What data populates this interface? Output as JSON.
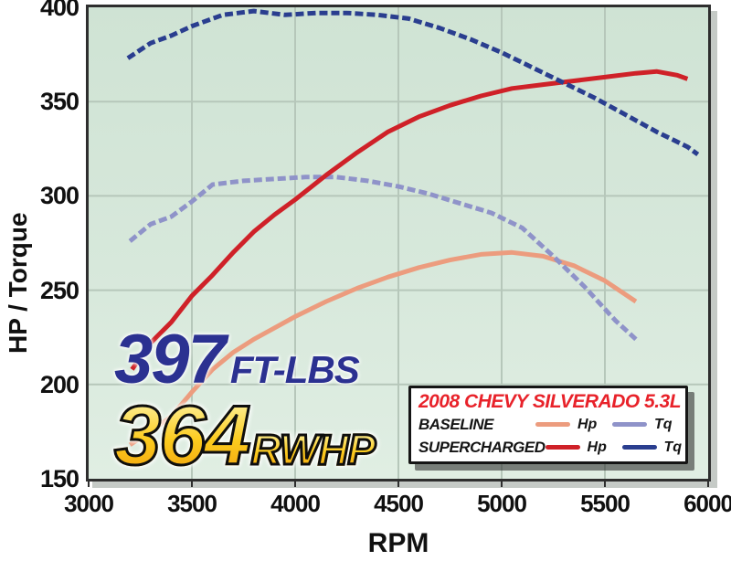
{
  "axes": {
    "y": {
      "title": "HP / Torque"
    },
    "x": {
      "title": "RPM"
    }
  },
  "annotations": {
    "torque_value": "397",
    "torque_unit": "FT-LBS",
    "hp_value": "364",
    "hp_unit": "RWHP"
  },
  "legend": {
    "title": "2008 CHEVY SILVERADO 5.3L",
    "rows": [
      {
        "label": "BASELINE",
        "hp_label": "Hp",
        "tq_label": "Tq",
        "hp_series": "Baseline Hp",
        "tq_series": "Baseline Tq"
      },
      {
        "label": "SUPERCHARGED",
        "hp_label": "Hp",
        "tq_label": "Tq",
        "hp_series": "Supercharged Hp",
        "tq_series": "Supercharged Tq"
      }
    ]
  },
  "colors": {
    "plot_background": "#d7e8db",
    "gridline": "#b6c7ba",
    "plot_border": "#2e2e2e",
    "baseline_hp": "#ec9c7e",
    "baseline_tq": "#8f93c9",
    "supercharged_hp": "#cf2128",
    "supercharged_tq": "#2a3e8f",
    "torque_annotation_text": "#2b3191",
    "hp_annotation_fill": "#fbc31c",
    "legend_title_text": "#e8222a"
  },
  "chart_data": {
    "type": "line",
    "title": "",
    "xlabel": "RPM",
    "ylabel": "HP / Torque",
    "xlim": [
      3000,
      6000
    ],
    "ylim": [
      150,
      400
    ],
    "x_ticks": [
      3000,
      3500,
      4000,
      4500,
      5000,
      5500,
      6000
    ],
    "y_ticks": [
      400,
      350,
      300,
      250,
      200,
      150
    ],
    "grid": true,
    "legend_position": "bottom-right",
    "peak_torque_ftlbs": 397,
    "peak_power_rwhp": 364,
    "series": [
      {
        "name": "Baseline Hp",
        "color": "#ec9c7e",
        "style": "solid",
        "x": [
          3200,
          3300,
          3400,
          3500,
          3600,
          3700,
          3800,
          3900,
          4000,
          4150,
          4300,
          4450,
          4600,
          4750,
          4900,
          5050,
          5200,
          5350,
          5500,
          5650
        ],
        "values": [
          168,
          175,
          183,
          196,
          208,
          217,
          224,
          230,
          236,
          244,
          251,
          257,
          262,
          266,
          269,
          270,
          268,
          263,
          255,
          244
        ]
      },
      {
        "name": "Baseline Tq",
        "color": "#8f93c9",
        "style": "dashed",
        "x": [
          3200,
          3300,
          3400,
          3500,
          3600,
          3750,
          3900,
          4050,
          4200,
          4350,
          4500,
          4650,
          4800,
          4950,
          5100,
          5250,
          5400,
          5550,
          5650
        ],
        "values": [
          276,
          285,
          289,
          297,
          306,
          308,
          309,
          310,
          310,
          308,
          305,
          301,
          296,
          291,
          283,
          268,
          252,
          234,
          224
        ]
      },
      {
        "name": "Supercharged Hp",
        "color": "#cf2128",
        "style": "solid",
        "x": [
          3210,
          3300,
          3400,
          3500,
          3600,
          3700,
          3800,
          3900,
          4000,
          4150,
          4300,
          4450,
          4600,
          4750,
          4900,
          5050,
          5200,
          5350,
          5500,
          5650,
          5750,
          5850,
          5900
        ],
        "values": [
          208,
          222,
          233,
          247,
          258,
          270,
          281,
          290,
          298,
          311,
          323,
          334,
          342,
          348,
          353,
          357,
          359,
          361,
          363,
          365,
          366,
          364,
          362
        ]
      },
      {
        "name": "Supercharged Tq",
        "color": "#2a3e8f",
        "style": "dashed",
        "x": [
          3190,
          3300,
          3400,
          3500,
          3650,
          3800,
          3950,
          4100,
          4250,
          4400,
          4550,
          4700,
          4850,
          5000,
          5150,
          5300,
          5450,
          5600,
          5750,
          5900,
          5950
        ],
        "values": [
          373,
          381,
          385,
          390,
          396,
          398,
          396,
          397,
          397,
          396,
          394,
          389,
          383,
          376,
          368,
          360,
          352,
          343,
          334,
          326,
          322
        ]
      }
    ]
  }
}
